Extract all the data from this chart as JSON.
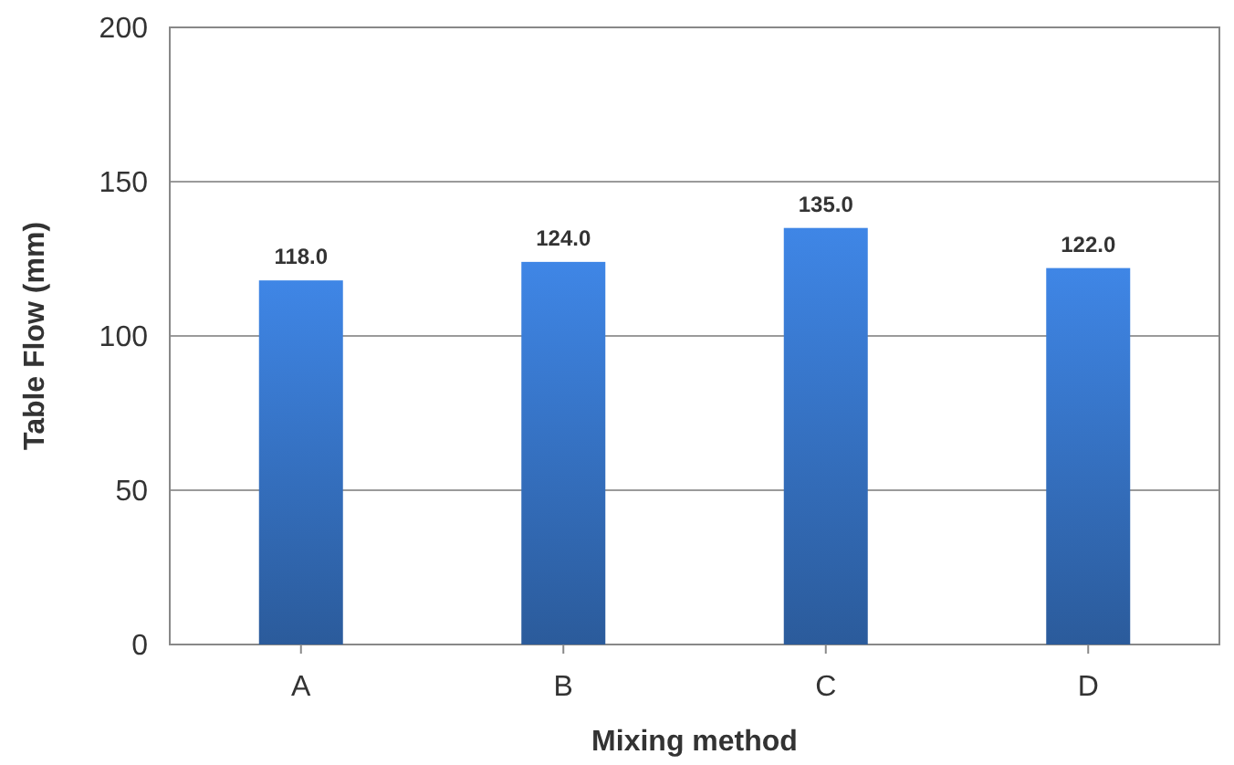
{
  "chart_data": {
    "type": "bar",
    "xlabel": "Mixing method",
    "ylabel": "Table Flow (mm)",
    "categories": [
      "A",
      "B",
      "C",
      "D"
    ],
    "values": [
      118,
      124,
      135,
      122
    ],
    "value_labels": [
      "118.0",
      "124.0",
      "135.0",
      "122.0"
    ],
    "color": "#3b7dd6",
    "ylim": [
      0,
      200
    ],
    "yticks": [
      0,
      50,
      100,
      150,
      200
    ],
    "grid": "y"
  }
}
